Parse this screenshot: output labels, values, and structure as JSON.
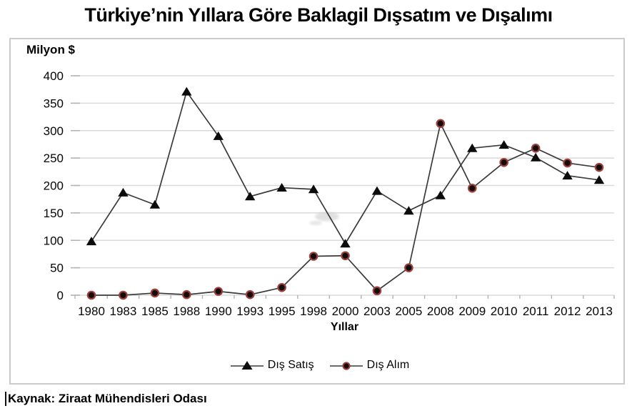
{
  "title": "Türkiye’nin Yıllara Göre Baklagil Dışsatım ve Dışalımı",
  "source": "Kaynak: Ziraat Mühendisleri Odası",
  "chart_data": {
    "type": "line",
    "title": "Türkiye’nin Yıllara Göre Baklagil Dışsatım ve Dışalımı",
    "y_axis_title": "Milyon $",
    "x_axis_title": "Yıllar",
    "categories": [
      "1980",
      "1983",
      "1985",
      "1988",
      "1990",
      "1993",
      "1995",
      "1998",
      "2000",
      "2003",
      "2005",
      "2008",
      "2009",
      "2010",
      "2011",
      "2012",
      "2013"
    ],
    "series": [
      {
        "name": "Dış Satış",
        "marker": "triangle",
        "line_color": "#3a3a3a",
        "marker_fill": "#0c0c0c",
        "values": [
          98,
          187,
          165,
          371,
          290,
          180,
          196,
          193,
          94,
          190,
          154,
          182,
          268,
          274,
          251,
          218,
          210
        ]
      },
      {
        "name": "Dış Alım",
        "marker": "circle",
        "line_color": "#3a3a3a",
        "marker_fill": "#140c0c",
        "marker_ring": "#9b403a",
        "values": [
          0,
          0,
          4,
          1,
          7,
          1,
          14,
          71,
          72,
          8,
          50,
          313,
          195,
          242,
          268,
          241,
          233
        ]
      }
    ],
    "ylim": [
      0,
      400
    ],
    "ytick_step": 50,
    "grid": "horizontal",
    "gridline_color": "#dadada",
    "tick_color": "#b3b3b3",
    "legend_position": "bottom"
  }
}
